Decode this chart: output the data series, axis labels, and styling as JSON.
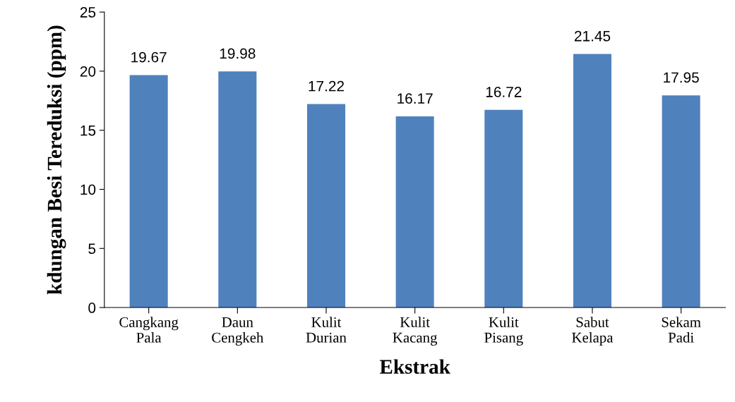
{
  "chart_data": {
    "type": "bar",
    "xlabel": "Ekstrak",
    "ylabel": "kdungan Besi Tereduksi (ppm)",
    "categories": [
      "Cangkang\nPala",
      "Daun\nCengkeh",
      "Kulit\nDurian",
      "Kulit\nKacang",
      "Kulit\nPisang",
      "Sabut\nKelapa",
      "Sekam\nPadi"
    ],
    "values": [
      19.67,
      19.98,
      17.22,
      16.17,
      16.72,
      21.45,
      17.95
    ],
    "color": "#4f81bd",
    "ylim": [
      0,
      25
    ],
    "yticks": [
      0,
      5,
      10,
      15,
      20,
      25
    ],
    "data_labels": true,
    "grid": false,
    "legend": false
  }
}
